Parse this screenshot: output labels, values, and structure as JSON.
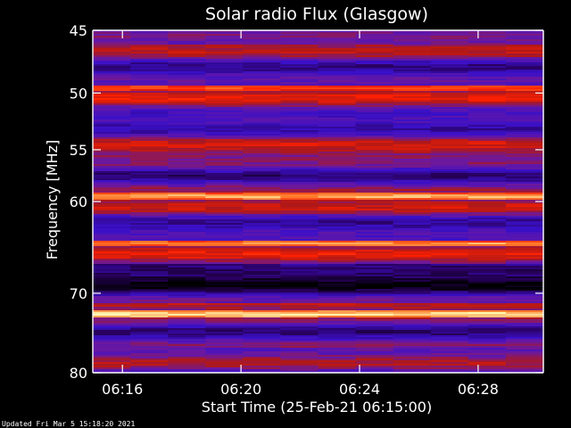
{
  "chart_data": {
    "type": "heatmap",
    "title": "Solar radio Flux (Glasgow)",
    "ylabel": "Frequency [MHz]",
    "xlabel": "Start Time (25-Feb-21 06:15:00)",
    "ylim": [
      45,
      80
    ],
    "y_ticks": [
      "45",
      "50",
      "55",
      "60",
      "70",
      "80"
    ],
    "x_ticks": [
      "06:16",
      "06:20",
      "06:24",
      "06:28"
    ],
    "x_range_minutes_after_0615": [
      0,
      15.2
    ],
    "colormap": [
      "#000000",
      "#2a0060",
      "#3a10c8",
      "#6a18a0",
      "#b01818",
      "#ff2000",
      "#ff8030",
      "#fff8b0"
    ],
    "features": [
      {
        "label": "strong persistent interference",
        "freq_mhz": 59.4,
        "intensity": 0.93
      },
      {
        "label": "strong persistent interference",
        "freq_mhz": 64.3,
        "intensity": 0.88
      },
      {
        "label": "strong persistent interference",
        "freq_mhz": 72.4,
        "intensity": 1.0
      },
      {
        "label": "dotted interference line",
        "freq_mhz": 49.5,
        "intensity": 0.8
      }
    ]
  },
  "footer": {
    "updated": "Updated Fri Mar  5 15:18:20 2021"
  }
}
